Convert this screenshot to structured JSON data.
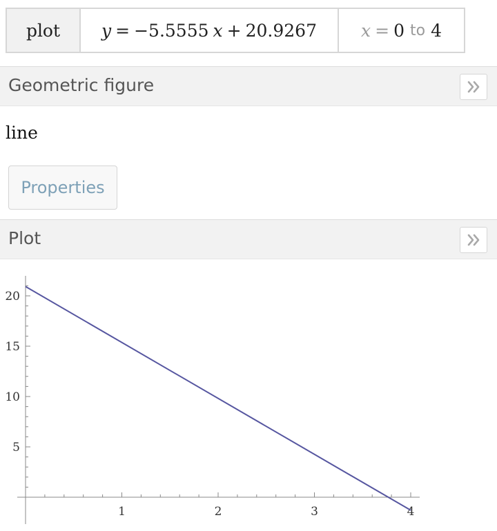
{
  "input": {
    "command": "plot",
    "equation": {
      "lhs": "y",
      "eq": "=",
      "rhs_coef": "−5.5555",
      "var": "x",
      "plus": "+",
      "constant": "20.9267"
    },
    "range": {
      "var": "x",
      "eq": "=",
      "start": "0",
      "to": "to",
      "end": "4"
    }
  },
  "pods": {
    "geometric_figure": {
      "title": "Geometric figure",
      "result": "line",
      "properties_label": "Properties",
      "expand_icon": "double-chevron-right-icon"
    },
    "plot": {
      "title": "Plot",
      "expand_icon": "double-chevron-right-icon"
    }
  },
  "colors": {
    "line": "#5656a0",
    "axis": "#888888",
    "header_bg": "#f2f2f2",
    "link_text": "#7ea1b7"
  },
  "chart_data": {
    "type": "line",
    "series": [
      {
        "points": [
          [
            0,
            20.9267
          ],
          [
            4,
            -1.2953
          ]
        ]
      }
    ],
    "xlim": [
      0,
      4.1
    ],
    "ylim": [
      -1.3,
      21
    ],
    "x_ticks": [
      1,
      2,
      3,
      4
    ],
    "y_ticks": [
      5,
      10,
      15,
      20
    ],
    "x_tick_labels": [
      "1",
      "2",
      "3",
      "4"
    ],
    "y_tick_labels": [
      "5",
      "10",
      "15",
      "20"
    ],
    "grid": false
  }
}
